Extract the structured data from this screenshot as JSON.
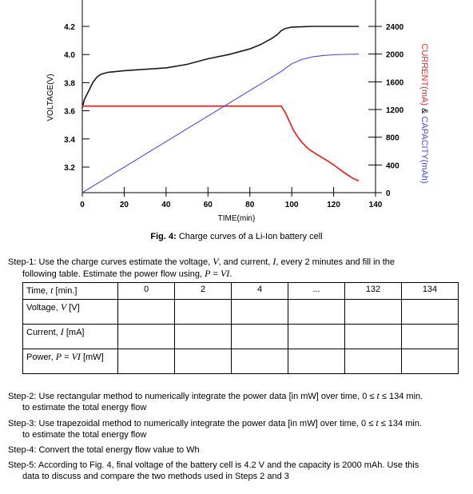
{
  "chart_data": {
    "type": "line",
    "xlabel": "TIME(min)",
    "ylabel_left": "VOLTAGE(V)",
    "ylabel_right_parts": [
      "CURRENT(mA)",
      " & ",
      "CAPACITY(mAh)"
    ],
    "xlim": [
      0,
      140
    ],
    "x_ticks": [
      "0",
      "20",
      "40",
      "60",
      "80",
      "100",
      "120",
      "140"
    ],
    "y_left_ticks": [
      "3.2",
      "3.4",
      "3.6",
      "3.8",
      "4.0",
      "4.2"
    ],
    "y_right_ticks": [
      "0",
      "400",
      "800",
      "1200",
      "1600",
      "2000",
      "2400"
    ],
    "series": [
      {
        "axis": "left",
        "color": "#1a1a1a",
        "x": [
          0,
          1,
          3,
          5,
          7,
          9,
          12,
          20,
          30,
          40,
          50,
          60,
          70,
          80,
          85,
          90,
          93,
          95,
          97,
          100,
          110,
          120,
          132
        ],
        "y": [
          3.62,
          3.68,
          3.74,
          3.8,
          3.84,
          3.86,
          3.873,
          3.885,
          3.895,
          3.905,
          3.93,
          3.97,
          4.0,
          4.04,
          4.07,
          4.11,
          4.14,
          4.17,
          4.185,
          4.195,
          4.2,
          4.2,
          4.2
        ]
      },
      {
        "axis": "right",
        "color": "#d93030",
        "x": [
          0,
          95,
          97,
          99,
          101,
          103,
          105,
          108,
          112,
          116,
          120,
          125,
          129,
          132
        ],
        "y": [
          1250,
          1250,
          1150,
          1020,
          890,
          800,
          720,
          630,
          550,
          480,
          400,
          290,
          210,
          170
        ]
      },
      {
        "axis": "right",
        "color": "#4a4ad0",
        "x": [
          0,
          95,
          100,
          105,
          110,
          115,
          120,
          125,
          132
        ],
        "y": [
          0,
          1750,
          1860,
          1925,
          1960,
          1980,
          1990,
          1996,
          2000
        ]
      }
    ]
  },
  "caption": {
    "label": "Fig. 4:",
    "text": " Charge curves of a Li-Ion battery cell"
  },
  "step1": {
    "line1": "Step-1: Use the charge curves estimate the voltage, V, and current, I, every 2 minutes and fill in the",
    "line2": "following table. Estimate the power flow using, P = VI."
  },
  "table": {
    "header_cells": [
      "Time, t [min.]",
      "0",
      "2",
      "4",
      "...",
      "132",
      "134"
    ],
    "row_labels": [
      "Voltage, V [V]",
      "Current, I [mA]",
      "Power, P = VI [mW]"
    ]
  },
  "steps": [
    {
      "line1": "Step-2: Use rectangular method to numerically integrate the power data [in mW] over time, 0 ≤ t ≤ 134 min.",
      "line2": "to estimate the total energy flow"
    },
    {
      "line1": "Step-3: Use trapezoidal method to numerically integrate the power data [in mW] over time, 0 ≤ t ≤ 134 min.",
      "line2": "to estimate the total energy flow"
    },
    {
      "line1": "Step-4: Convert the total energy flow value to Wh",
      "line2": ""
    },
    {
      "line1": "Step-5: According to Fig. 4, final voltage of the battery cell is 4.2 V and the capacity is 2000 mAh. Use this",
      "line2": "data to discuss and compare the two methods used in Steps 2 and 3"
    }
  ]
}
